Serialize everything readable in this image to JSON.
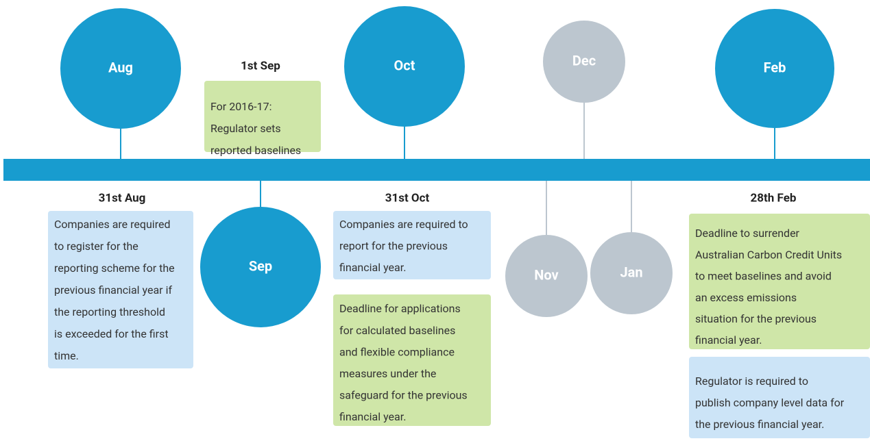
{
  "months": [
    {
      "label": "Aug"
    },
    {
      "label": "Oct"
    },
    {
      "label": "Dec"
    },
    {
      "label": "Feb"
    },
    {
      "label": "Sep"
    },
    {
      "label": "Nov"
    },
    {
      "label": "Jan"
    }
  ],
  "deadlines": [
    {
      "date": "1st Sep",
      "boxes": [
        {
          "lines": [
            "For 2016-17:",
            "Regulator sets",
            "reported baselines"
          ]
        }
      ]
    },
    {
      "date": "31st Aug",
      "boxes": [
        {
          "lines": [
            "Companies are required",
            "to register for the",
            "reporting scheme for the",
            "previous financial year if",
            "the reporting threshold",
            "is exceeded for the first",
            "time."
          ]
        }
      ]
    },
    {
      "date": "31st Oct",
      "boxes": [
        {
          "lines": [
            "Companies are required to",
            "report for the previous",
            "financial year."
          ]
        },
        {
          "lines": [
            "Deadline for applications",
            "for calculated baselines",
            "and flexible compliance",
            "measures under the",
            "safeguard for the previous",
            "financial year."
          ]
        }
      ]
    },
    {
      "date": "28th Feb",
      "boxes": [
        {
          "lines": [
            "Deadline to surrender",
            "Australian Carbon Credit Units",
            "to meet baselines and avoid",
            "an excess emissions",
            "situation for the previous",
            "financial year."
          ]
        },
        {
          "lines": [
            "Regulator is required to",
            "publish company level data for",
            "the previous financial year."
          ]
        }
      ]
    }
  ]
}
